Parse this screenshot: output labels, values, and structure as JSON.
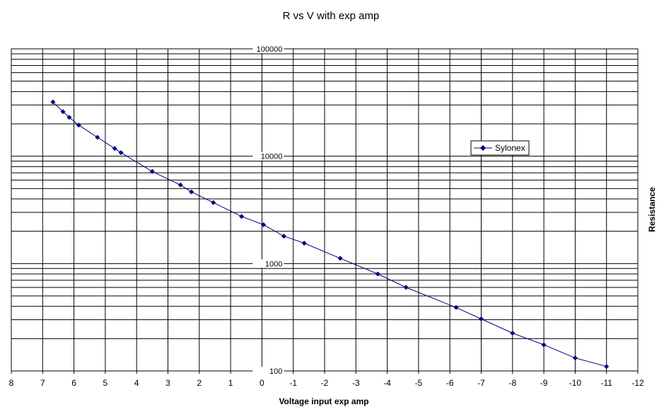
{
  "chart_data": {
    "type": "scatter",
    "title": "R vs V with exp amp",
    "xlabel": "Voltage input exp amp",
    "ylabel": "Resistance",
    "xlim": [
      8,
      -12
    ],
    "x_reversed": true,
    "ylim": [
      100,
      100000
    ],
    "y_scale": "log",
    "x_ticks": [
      8,
      7,
      6,
      5,
      4,
      3,
      2,
      1,
      0,
      -1,
      -2,
      -3,
      -4,
      -5,
      -6,
      -7,
      -8,
      -9,
      -10,
      -11,
      -12
    ],
    "y_ticks": [
      100,
      1000,
      10000,
      100000
    ],
    "y_tick_labels": [
      "100",
      "1000",
      "10000",
      "100000"
    ],
    "grid": true,
    "legend_position": "right",
    "series": [
      {
        "name": "Sylonex",
        "color": "#000080",
        "marker": "diamond",
        "line": true,
        "x": [
          6.67,
          6.35,
          6.15,
          5.85,
          5.25,
          4.7,
          4.5,
          3.5,
          2.6,
          2.25,
          1.55,
          0.65,
          -0.05,
          -0.7,
          -1.35,
          -2.5,
          -3.7,
          -4.6,
          -6.2,
          -7.0,
          -8.0,
          -9.0,
          -10.0,
          -11.0
        ],
        "y": [
          32000,
          26000,
          23000,
          19500,
          15000,
          11800,
          10800,
          7200,
          5400,
          4650,
          3700,
          2750,
          2300,
          1800,
          1550,
          1120,
          800,
          600,
          390,
          305,
          225,
          175,
          132,
          110
        ]
      }
    ]
  }
}
